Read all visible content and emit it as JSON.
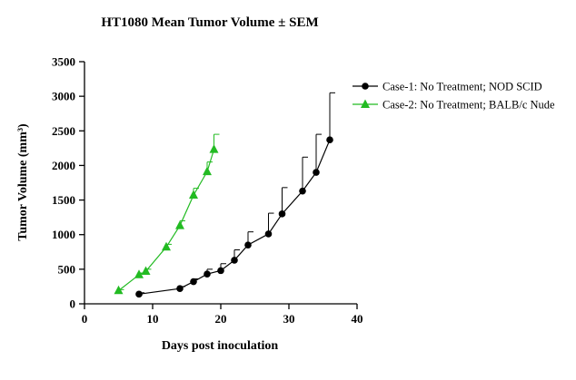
{
  "chart_data": {
    "type": "line",
    "title": "HT1080 Mean Tumor Volume ± SEM",
    "xlabel": "Days post inoculation",
    "ylabel": "Tumor Volume (mm³)",
    "xlim": [
      0,
      40
    ],
    "ylim": [
      0,
      3500
    ],
    "xticks": [
      "0",
      "10",
      "20",
      "30",
      "40"
    ],
    "yticks": [
      "0",
      "500",
      "1000",
      "1500",
      "2000",
      "2500",
      "3000",
      "3500"
    ],
    "grid": false,
    "legend_position": "top-right",
    "series": [
      {
        "name": "Case-1: No Treatment; NOD SCID",
        "color": "#000000",
        "marker": "circle",
        "error_bars": "upper",
        "points": [
          {
            "x": 8,
            "y": 140,
            "err": 20
          },
          {
            "x": 14,
            "y": 220,
            "err": 30
          },
          {
            "x": 16,
            "y": 320,
            "err": 40
          },
          {
            "x": 18,
            "y": 430,
            "err": 70
          },
          {
            "x": 20,
            "y": 480,
            "err": 100
          },
          {
            "x": 22,
            "y": 630,
            "err": 150
          },
          {
            "x": 24,
            "y": 850,
            "err": 190
          },
          {
            "x": 27,
            "y": 1010,
            "err": 300
          },
          {
            "x": 29,
            "y": 1300,
            "err": 380
          },
          {
            "x": 32,
            "y": 1630,
            "err": 490
          },
          {
            "x": 34,
            "y": 1900,
            "err": 550
          },
          {
            "x": 36,
            "y": 2370,
            "err": 680
          }
        ]
      },
      {
        "name": "Case-2: No Treatment; BALB/c Nude",
        "color": "#22bb22",
        "marker": "triangle",
        "error_bars": "upper",
        "points": [
          {
            "x": 5,
            "y": 190,
            "err": 15
          },
          {
            "x": 8,
            "y": 420,
            "err": 25
          },
          {
            "x": 9,
            "y": 470,
            "err": 30
          },
          {
            "x": 12,
            "y": 820,
            "err": 40
          },
          {
            "x": 14,
            "y": 1130,
            "err": 70
          },
          {
            "x": 16,
            "y": 1570,
            "err": 100
          },
          {
            "x": 18,
            "y": 1910,
            "err": 140
          },
          {
            "x": 19,
            "y": 2230,
            "err": 220
          }
        ]
      }
    ]
  }
}
